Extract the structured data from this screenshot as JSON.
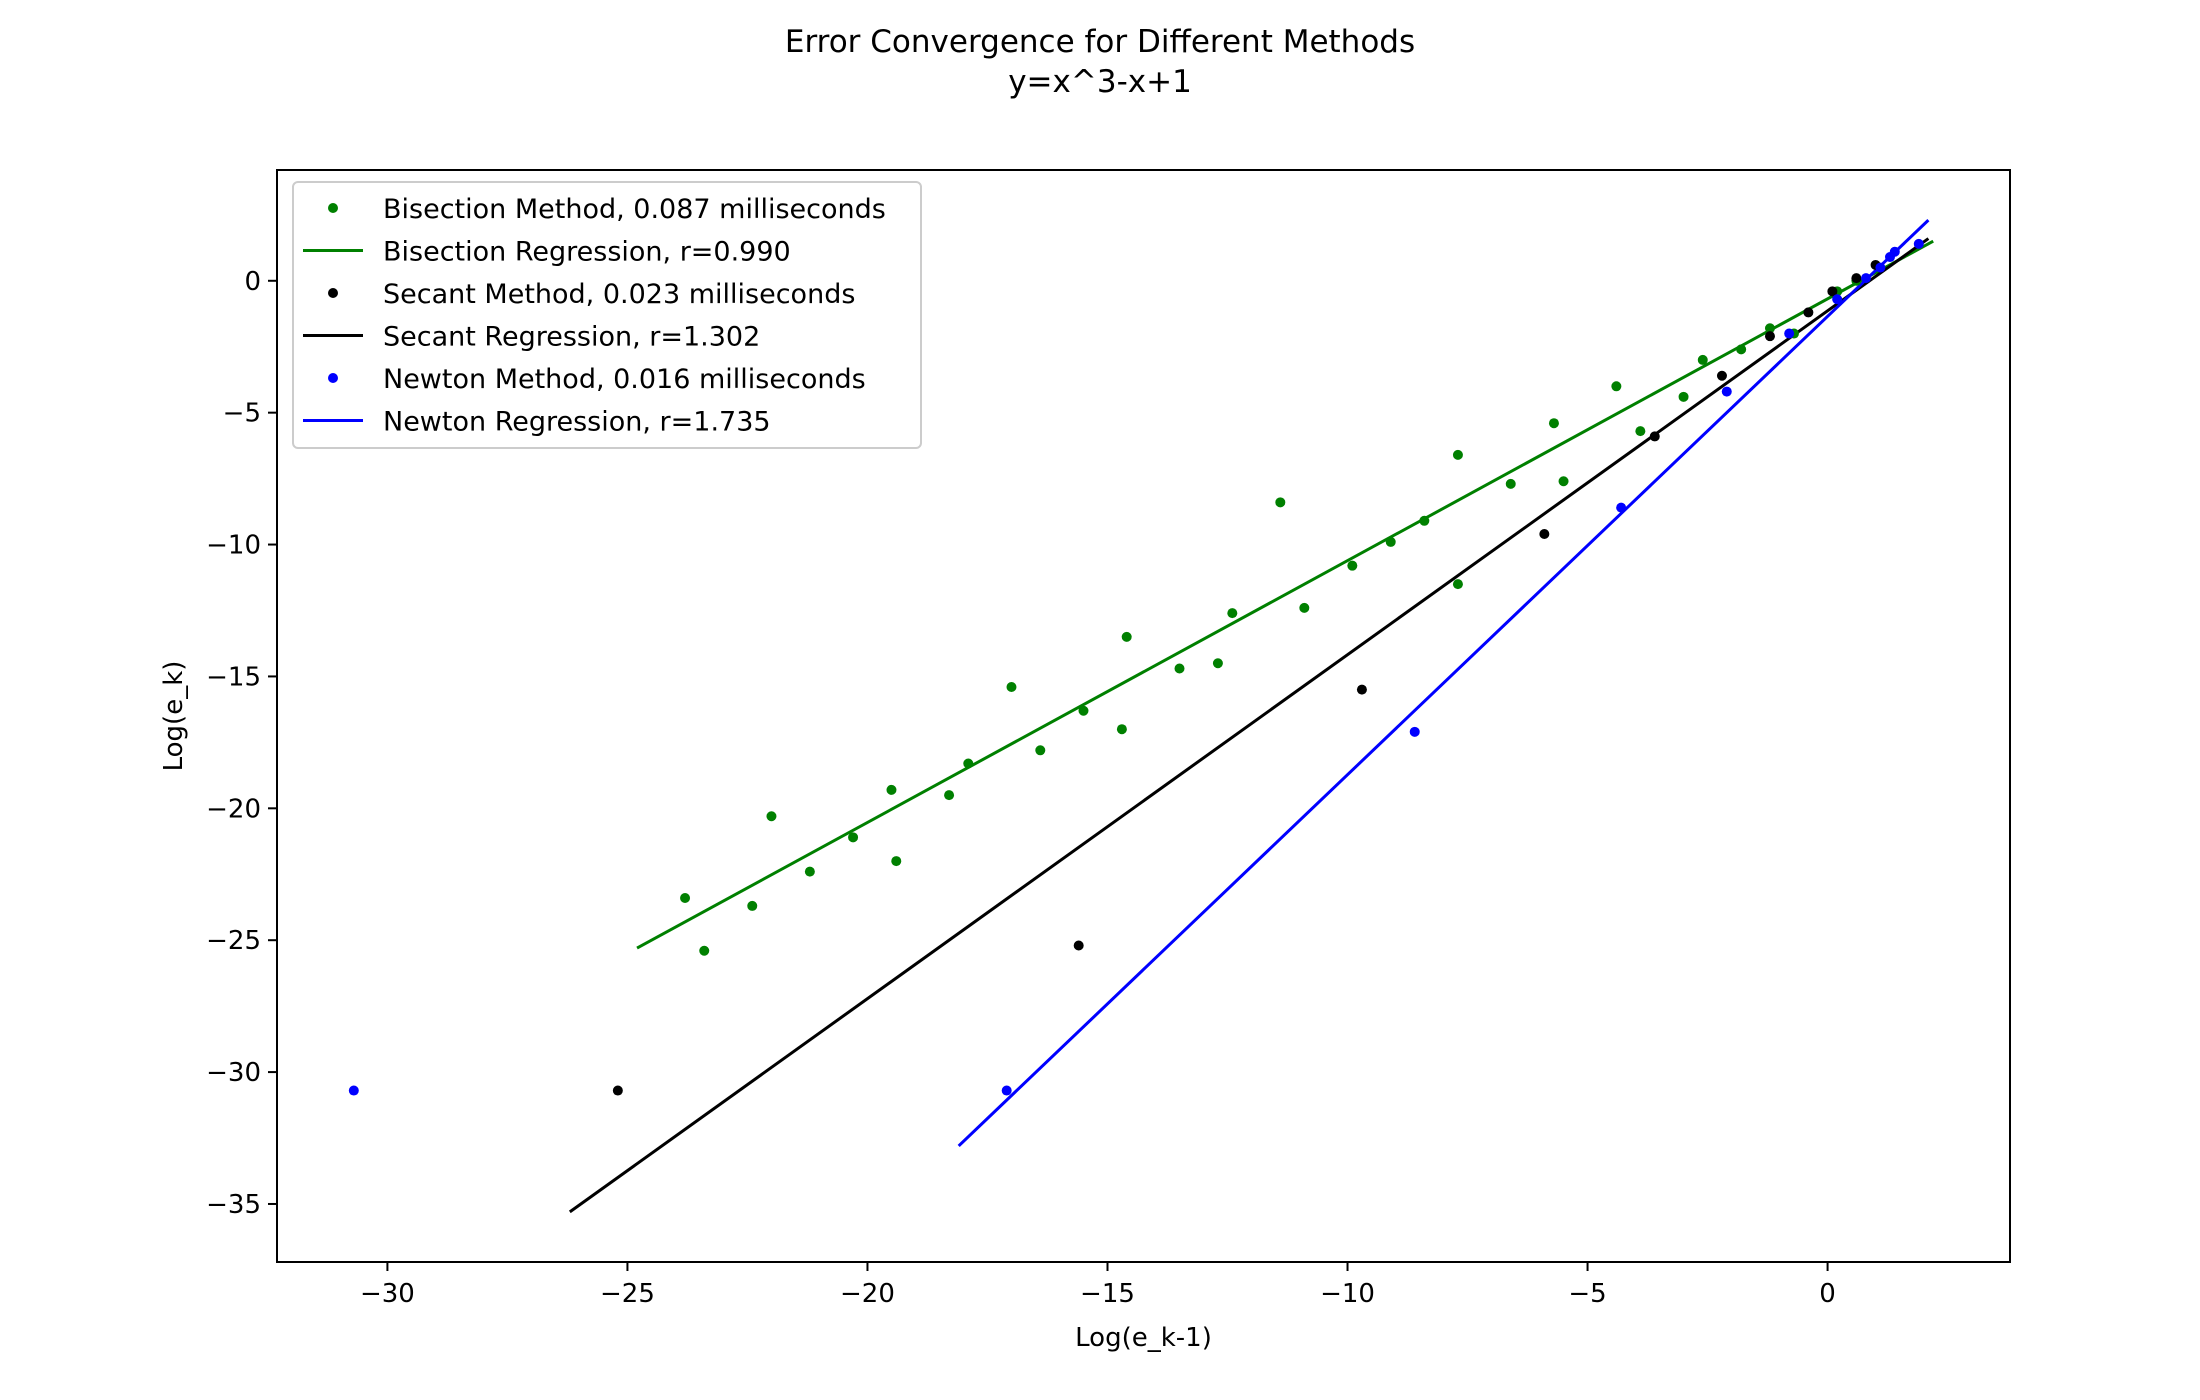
{
  "chart_data": {
    "type": "scatter",
    "title": "Error Convergence for Different Methods",
    "subtitle": "y=x^3-x+1",
    "xlabel": "Log(e_k-1)",
    "ylabel": "Log(e_k)",
    "xlim": [
      -32.3,
      3.8
    ],
    "ylim": [
      -37.2,
      4.2
    ],
    "xticks": [
      -30,
      -25,
      -20,
      -15,
      -10,
      -5,
      0
    ],
    "yticks": [
      0,
      -5,
      -10,
      -15,
      -20,
      -25,
      -30,
      -35
    ],
    "grid": false,
    "legend": "top-left",
    "series": [
      {
        "name": "Bisection Method, 0.087 milliseconds",
        "kind": "points",
        "color": "#008000",
        "points": [
          [
            -23.8,
            -23.4
          ],
          [
            -23.4,
            -25.4
          ],
          [
            -22.4,
            -23.7
          ],
          [
            -22.0,
            -20.3
          ],
          [
            -21.2,
            -22.4
          ],
          [
            -20.3,
            -21.1
          ],
          [
            -19.5,
            -19.3
          ],
          [
            -19.4,
            -22.0
          ],
          [
            -18.3,
            -19.5
          ],
          [
            -17.9,
            -18.3
          ],
          [
            -17.0,
            -15.4
          ],
          [
            -16.4,
            -17.8
          ],
          [
            -15.5,
            -16.3
          ],
          [
            -14.7,
            -17.0
          ],
          [
            -14.6,
            -13.5
          ],
          [
            -13.5,
            -14.7
          ],
          [
            -12.7,
            -14.5
          ],
          [
            -12.4,
            -12.6
          ],
          [
            -11.4,
            -8.4
          ],
          [
            -10.9,
            -12.4
          ],
          [
            -9.9,
            -10.8
          ],
          [
            -9.1,
            -9.9
          ],
          [
            -8.4,
            -9.1
          ],
          [
            -7.7,
            -6.6
          ],
          [
            -7.7,
            -11.5
          ],
          [
            -6.6,
            -7.7
          ],
          [
            -5.7,
            -5.4
          ],
          [
            -5.5,
            -7.6
          ],
          [
            -4.4,
            -4.0
          ],
          [
            -3.9,
            -5.7
          ],
          [
            -3.0,
            -4.4
          ],
          [
            -2.6,
            -3.0
          ],
          [
            -1.8,
            -2.6
          ],
          [
            -1.2,
            -1.8
          ],
          [
            -0.7,
            -2.0
          ],
          [
            0.2,
            -0.4
          ],
          [
            0.6,
            0.0
          ]
        ]
      },
      {
        "name": "Bisection Regression, r=0.990",
        "kind": "line",
        "color": "#008000",
        "points": [
          [
            -24.8,
            -25.3
          ],
          [
            2.2,
            1.5
          ]
        ]
      },
      {
        "name": "Secant Method, 0.023 milliseconds",
        "kind": "points",
        "color": "#000000",
        "points": [
          [
            -25.2,
            -30.7
          ],
          [
            -15.6,
            -25.2
          ],
          [
            -9.7,
            -15.5
          ],
          [
            -5.9,
            -9.6
          ],
          [
            -3.6,
            -5.9
          ],
          [
            -2.2,
            -3.6
          ],
          [
            -1.2,
            -2.1
          ],
          [
            -0.4,
            -1.2
          ],
          [
            0.1,
            -0.4
          ],
          [
            0.6,
            0.1
          ],
          [
            1.0,
            0.6
          ]
        ]
      },
      {
        "name": "Secant Regression, r=1.302",
        "kind": "line",
        "color": "#000000",
        "points": [
          [
            -26.2,
            -35.3
          ],
          [
            2.1,
            1.6
          ]
        ]
      },
      {
        "name": "Newton Method, 0.016 milliseconds",
        "kind": "points",
        "color": "#0000ff",
        "points": [
          [
            -30.7,
            -30.7
          ],
          [
            -17.1,
            -30.7
          ],
          [
            -8.6,
            -17.1
          ],
          [
            -4.3,
            -8.6
          ],
          [
            -2.1,
            -4.2
          ],
          [
            -0.8,
            -2.0
          ],
          [
            0.2,
            -0.7
          ],
          [
            0.8,
            0.1
          ],
          [
            1.1,
            0.5
          ],
          [
            1.3,
            0.9
          ],
          [
            1.4,
            1.1
          ],
          [
            1.9,
            1.4
          ]
        ]
      },
      {
        "name": "Newton Regression, r=1.735",
        "kind": "line",
        "color": "#0000ff",
        "points": [
          [
            -18.1,
            -32.8
          ],
          [
            2.1,
            2.3
          ]
        ]
      }
    ]
  }
}
